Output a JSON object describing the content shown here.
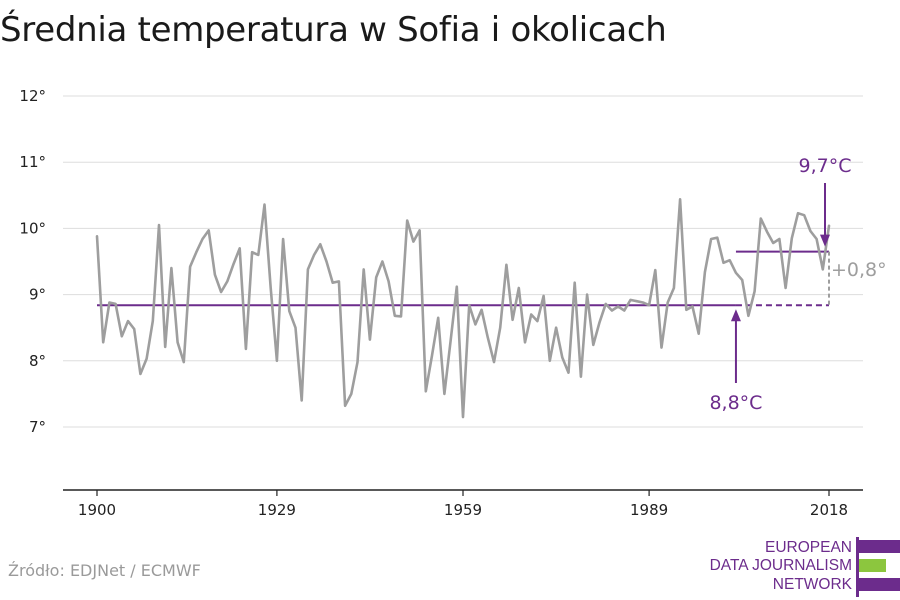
{
  "title": "Średnia temperatura w Sofia i okolicach",
  "source": "Źródło: EDJNet / ECMWF",
  "logo": {
    "lines": [
      "EUROPEAN",
      "DATA JOURNALISM",
      "NETWORK"
    ],
    "colors": {
      "purple": "#6c2c8c",
      "green": "#8cc63e"
    }
  },
  "colors": {
    "series": "#9e9e9e",
    "accent": "#6c2c8c",
    "grid": "#dddddd",
    "axis": "#222222",
    "delta": "#9e9e9e"
  },
  "chart_data": {
    "type": "line",
    "title": "Średnia temperatura w Sofia i okolicach",
    "xlabel": "",
    "ylabel": "",
    "xlim": [
      1900,
      2018
    ],
    "ylim": [
      6,
      12
    ],
    "x_ticks": [
      1900,
      1929,
      1959,
      1989,
      2018
    ],
    "x_tick_labels": [
      "1900",
      "1929",
      "1959",
      "1989",
      "2018"
    ],
    "y_ticks": [
      7,
      8,
      9,
      10,
      11,
      12
    ],
    "y_tick_labels": [
      "7°",
      "8°",
      "9°",
      "10°",
      "11°",
      "12°"
    ],
    "grid": true,
    "series": [
      {
        "x": [
          1900,
          1901,
          1902,
          1903,
          1904,
          1905,
          1906,
          1907,
          1908,
          1909,
          1910,
          1911,
          1912,
          1913,
          1914,
          1915,
          1916,
          1917,
          1918,
          1919,
          1920,
          1921,
          1922,
          1923,
          1924,
          1925,
          1926,
          1927,
          1928,
          1929,
          1930,
          1931,
          1932,
          1933,
          1934,
          1935,
          1936,
          1937,
          1938,
          1939,
          1940,
          1941,
          1942,
          1943,
          1944,
          1945,
          1946,
          1947,
          1948,
          1949,
          1950,
          1951,
          1952,
          1953,
          1954,
          1955,
          1956,
          1957,
          1958,
          1959,
          1960,
          1961,
          1962,
          1963,
          1964,
          1965,
          1966,
          1967,
          1968,
          1969,
          1970,
          1971,
          1972,
          1973,
          1974,
          1975,
          1976,
          1977,
          1978,
          1979,
          1980,
          1981,
          1982,
          1983,
          1984,
          1985,
          1986,
          1987,
          1988,
          1989,
          1990,
          1991,
          1992,
          1993,
          1994,
          1995,
          1996,
          1997,
          1998,
          1999,
          2000,
          2001,
          2002,
          2003,
          2004,
          2005,
          2006,
          2007,
          2008,
          2009,
          2010,
          2011,
          2012,
          2013,
          2014,
          2015,
          2016,
          2017,
          2018
        ],
        "values": [
          9.88,
          8.28,
          8.88,
          8.86,
          8.37,
          8.6,
          8.48,
          7.8,
          8.03,
          8.6,
          10.05,
          8.21,
          9.4,
          8.28,
          7.98,
          9.42,
          9.64,
          9.84,
          9.97,
          9.3,
          9.04,
          9.2,
          9.46,
          9.7,
          8.18,
          9.64,
          9.6,
          10.36,
          9.1,
          8.0,
          9.84,
          8.75,
          8.5,
          7.4,
          9.38,
          9.6,
          9.76,
          9.5,
          9.18,
          9.2,
          7.32,
          7.5,
          7.98,
          9.38,
          8.32,
          9.26,
          9.5,
          9.2,
          8.68,
          8.67,
          10.12,
          9.8,
          9.97,
          7.54,
          8.08,
          8.65,
          7.5,
          8.3,
          9.12,
          7.15,
          8.84,
          8.55,
          8.77,
          8.35,
          7.98,
          8.5,
          9.45,
          8.62,
          9.1,
          8.28,
          8.7,
          8.6,
          8.98,
          8.0,
          8.5,
          8.05,
          7.82,
          9.18,
          7.76,
          9.0,
          8.24,
          8.58,
          8.86,
          8.76,
          8.82,
          8.76,
          8.92,
          8.9,
          8.88,
          8.84,
          9.37,
          8.2,
          8.88,
          9.1,
          10.44,
          8.77,
          8.82,
          8.41,
          9.34,
          9.84,
          9.86,
          9.48,
          9.52,
          9.33,
          9.22,
          8.68,
          9.05,
          10.15,
          9.95,
          9.78,
          9.84,
          9.1,
          9.85,
          10.23,
          10.2,
          9.96,
          9.84,
          9.38,
          10.04
        ]
      }
    ],
    "baseline": {
      "value": 8.84,
      "from": 1900,
      "to": 2018,
      "solid_to": 2003,
      "label": "8,8°C",
      "color": "#6c2c8c"
    },
    "recent": {
      "value": 9.65,
      "from": 2003,
      "to": 2018,
      "label": "9,7°C",
      "color": "#6c2c8c"
    },
    "delta": {
      "label": "+0,8°",
      "color": "#9e9e9e"
    }
  }
}
